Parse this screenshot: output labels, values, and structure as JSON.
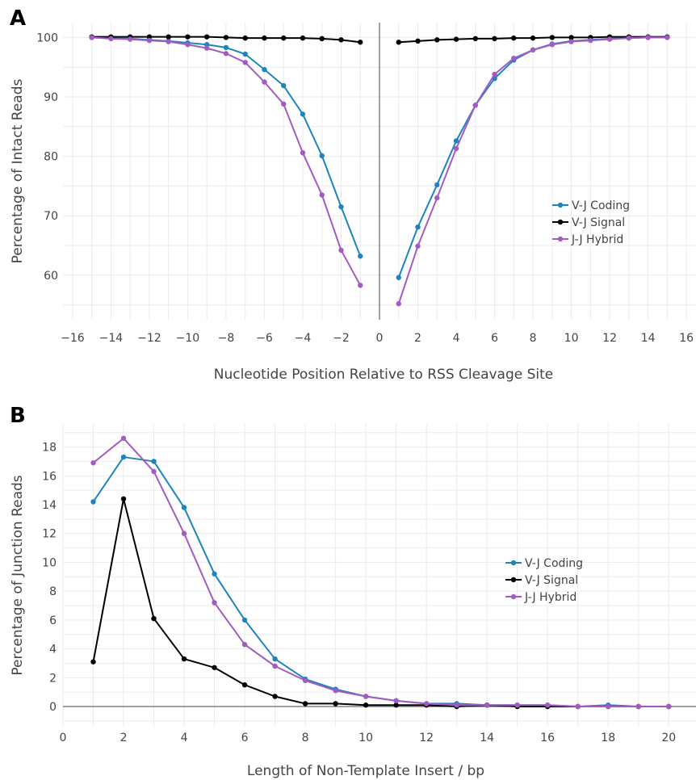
{
  "colors": {
    "vj_coding": "#1f84bd",
    "vj_signal": "#000000",
    "jj_hybrid": "#a35bc4",
    "grid": "#ebebeb",
    "text": "#444444"
  },
  "chart_data": [
    {
      "panel_label": "A",
      "type": "line",
      "xlabel": "Nucleotide Position Relative to RSS Cleavage Site",
      "ylabel": "Percentage of Intact Reads",
      "xlim": [
        -16.5,
        16.5
      ],
      "ylim": [
        52.5,
        102.5
      ],
      "xticks": [
        -16,
        -14,
        -12,
        -10,
        -8,
        -6,
        -4,
        -2,
        0,
        2,
        4,
        6,
        8,
        10,
        12,
        14,
        16
      ],
      "yticks": [
        60,
        70,
        80,
        90,
        100
      ],
      "grid": true,
      "vertical_line_at_x": 0,
      "legend_position": "right",
      "series": [
        {
          "name": "V-J Coding",
          "color_key": "vj_coding",
          "segments": [
            {
              "x": [
                -15,
                -14,
                -13,
                -12,
                -11,
                -10,
                -9,
                -8,
                -7,
                -6,
                -5,
                -4,
                -3,
                -2,
                -1
              ],
              "y": [
                100,
                99.9,
                99.8,
                99.6,
                99.4,
                99.1,
                98.8,
                98.3,
                97.2,
                94.6,
                91.9,
                87.1,
                80.1,
                71.5,
                63.2
              ]
            },
            {
              "x": [
                1,
                2,
                3,
                4,
                5,
                6,
                7,
                8,
                9,
                10,
                11,
                12,
                13,
                14,
                15
              ],
              "y": [
                59.6,
                68.1,
                75.2,
                82.6,
                88.6,
                93.1,
                96.2,
                97.9,
                98.9,
                99.4,
                99.6,
                99.8,
                99.9,
                100,
                100
              ]
            }
          ]
        },
        {
          "name": "V-J Signal",
          "color_key": "vj_signal",
          "segments": [
            {
              "x": [
                -15,
                -14,
                -13,
                -12,
                -11,
                -10,
                -9,
                -8,
                -7,
                -6,
                -5,
                -4,
                -3,
                -2,
                -1
              ],
              "y": [
                100.1,
                100.1,
                100.1,
                100.1,
                100.1,
                100.1,
                100.1,
                100,
                99.9,
                99.9,
                99.9,
                99.9,
                99.8,
                99.6,
                99.2
              ]
            },
            {
              "x": [
                1,
                2,
                3,
                4,
                5,
                6,
                7,
                8,
                9,
                10,
                11,
                12,
                13,
                14,
                15
              ],
              "y": [
                99.2,
                99.4,
                99.6,
                99.7,
                99.8,
                99.8,
                99.9,
                99.9,
                100,
                100,
                100,
                100.1,
                100.1,
                100.1,
                100.1
              ]
            }
          ]
        },
        {
          "name": "J-J Hybrid",
          "color_key": "jj_hybrid",
          "segments": [
            {
              "x": [
                -15,
                -14,
                -13,
                -12,
                -11,
                -10,
                -9,
                -8,
                -7,
                -6,
                -5,
                -4,
                -3,
                -2,
                -1
              ],
              "y": [
                100,
                99.8,
                99.7,
                99.5,
                99.3,
                98.8,
                98.2,
                97.3,
                95.8,
                92.5,
                88.8,
                80.6,
                73.5,
                64.2,
                58.3
              ]
            },
            {
              "x": [
                1,
                2,
                3,
                4,
                5,
                6,
                7,
                8,
                9,
                10,
                11,
                12,
                13,
                14,
                15
              ],
              "y": [
                55.2,
                64.9,
                73.0,
                81.3,
                88.6,
                93.8,
                96.5,
                97.9,
                98.8,
                99.3,
                99.5,
                99.7,
                99.9,
                100,
                100
              ]
            }
          ]
        }
      ]
    },
    {
      "panel_label": "B",
      "type": "line",
      "xlabel": "Length of Non-Template Insert / bp",
      "ylabel": "Percentage of Junction Reads",
      "xlim": [
        0,
        20.9
      ],
      "ylim": [
        -1.4,
        19.6
      ],
      "xticks": [
        0,
        2,
        4,
        6,
        8,
        10,
        12,
        14,
        16,
        18,
        20
      ],
      "yticks": [
        0,
        2,
        4,
        6,
        8,
        10,
        12,
        14,
        16,
        18
      ],
      "grid": true,
      "legend_position": "right",
      "series": [
        {
          "name": "V-J Coding",
          "color_key": "vj_coding",
          "segments": [
            {
              "x": [
                1,
                2,
                3,
                4,
                5,
                6,
                7,
                8,
                9,
                10,
                11,
                12,
                13,
                14,
                15,
                16,
                17,
                18,
                19,
                20
              ],
              "y": [
                14.2,
                17.3,
                17.0,
                13.8,
                9.2,
                6.0,
                3.3,
                1.9,
                1.2,
                0.7,
                0.4,
                0.2,
                0.2,
                0.1,
                0.1,
                0.1,
                0.0,
                0.1,
                0.0,
                0.0
              ]
            }
          ]
        },
        {
          "name": "V-J Signal",
          "color_key": "vj_signal",
          "segments": [
            {
              "x": [
                1,
                2,
                3,
                4,
                5,
                6,
                7,
                8,
                9,
                10,
                11,
                12,
                13,
                14,
                15,
                16,
                17,
                18,
                19,
                20
              ],
              "y": [
                3.1,
                14.4,
                6.1,
                3.3,
                2.7,
                1.5,
                0.7,
                0.2,
                0.2,
                0.1,
                0.1,
                0.1,
                0.0,
                0.1,
                0.0,
                0.0,
                0.0,
                0.0,
                0.0,
                0.0
              ]
            }
          ]
        },
        {
          "name": "J-J Hybrid",
          "color_key": "jj_hybrid",
          "segments": [
            {
              "x": [
                1,
                2,
                3,
                4,
                5,
                6,
                7,
                8,
                9,
                10,
                11,
                12,
                13,
                14,
                15,
                16,
                17,
                18,
                19,
                20
              ],
              "y": [
                16.9,
                18.6,
                16.3,
                12.0,
                7.2,
                4.3,
                2.8,
                1.8,
                1.1,
                0.7,
                0.4,
                0.2,
                0.1,
                0.1,
                0.1,
                0.1,
                0.0,
                0.0,
                0.0,
                0.0
              ]
            }
          ]
        }
      ]
    }
  ]
}
